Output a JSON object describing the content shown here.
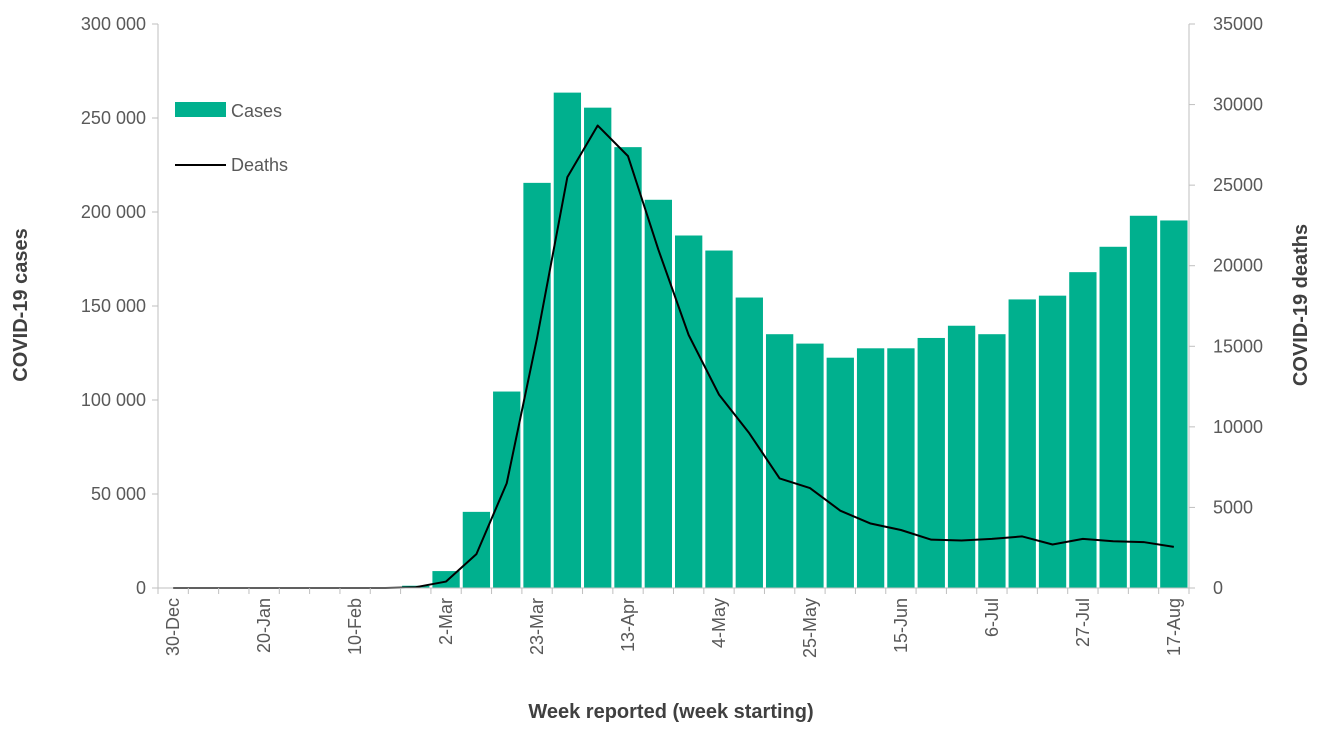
{
  "chart_data": {
    "type": "bar",
    "title": "",
    "xlabel": "Week reported (week starting)",
    "ylabel": "COVID-19 cases",
    "y2label": "COVID-19 deaths",
    "ylim": [
      0,
      300000
    ],
    "y2lim": [
      0,
      35000
    ],
    "yticks": [
      0,
      50000,
      100000,
      150000,
      200000,
      250000,
      300000
    ],
    "ytick_labels": [
      "0",
      "50 000",
      "100 000",
      "150 000",
      "200 000",
      "250 000",
      "300 000"
    ],
    "y2ticks": [
      0,
      5000,
      10000,
      15000,
      20000,
      25000,
      30000,
      35000
    ],
    "y2tick_labels": [
      "0",
      "5000",
      "10000",
      "15000",
      "20000",
      "25000",
      "30000",
      "35000"
    ],
    "categories": [
      "30-Dec",
      "6-Jan",
      "13-Jan",
      "20-Jan",
      "27-Jan",
      "3-Feb",
      "10-Feb",
      "17-Feb",
      "24-Feb",
      "2-Mar",
      "9-Mar",
      "16-Mar",
      "23-Mar",
      "30-Mar",
      "6-Apr",
      "13-Apr",
      "20-Apr",
      "27-Apr",
      "4-May",
      "11-May",
      "18-May",
      "25-May",
      "1-Jun",
      "8-Jun",
      "15-Jun",
      "22-Jun",
      "29-Jun",
      "6-Jul",
      "13-Jul",
      "20-Jul",
      "27-Jul",
      "3-Aug",
      "10-Aug",
      "17-Aug"
    ],
    "xtick_labels": [
      "30-Dec",
      "20-Jan",
      "10-Feb",
      "2-Mar",
      "23-Mar",
      "13-Apr",
      "4-May",
      "25-May",
      "15-Jun",
      "6-Jul",
      "27-Jul",
      "17-Aug"
    ],
    "legend_position": "top-left",
    "grid": false,
    "series": [
      {
        "name": "Cases",
        "type": "bar",
        "axis": "left",
        "color": "#00b08e",
        "values": [
          0,
          0,
          0,
          0,
          0,
          0,
          0,
          0,
          1200,
          9000,
          40500,
          104500,
          215500,
          263500,
          255500,
          234500,
          206500,
          187500,
          179500,
          154500,
          135000,
          130000,
          122500,
          127500,
          127500,
          133000,
          139500,
          135000,
          153500,
          155500,
          168000,
          181500,
          198000,
          195500
        ]
      },
      {
        "name": "Deaths",
        "type": "line",
        "axis": "right",
        "color": "#000000",
        "values": [
          0,
          0,
          0,
          0,
          0,
          0,
          0,
          0,
          50,
          400,
          2100,
          6500,
          15500,
          25500,
          28700,
          26800,
          21000,
          15700,
          12000,
          9600,
          6800,
          6200,
          4800,
          4000,
          3600,
          3000,
          2950,
          3050,
          3200,
          2700,
          3050,
          2900,
          2850,
          2550
        ]
      }
    ]
  }
}
